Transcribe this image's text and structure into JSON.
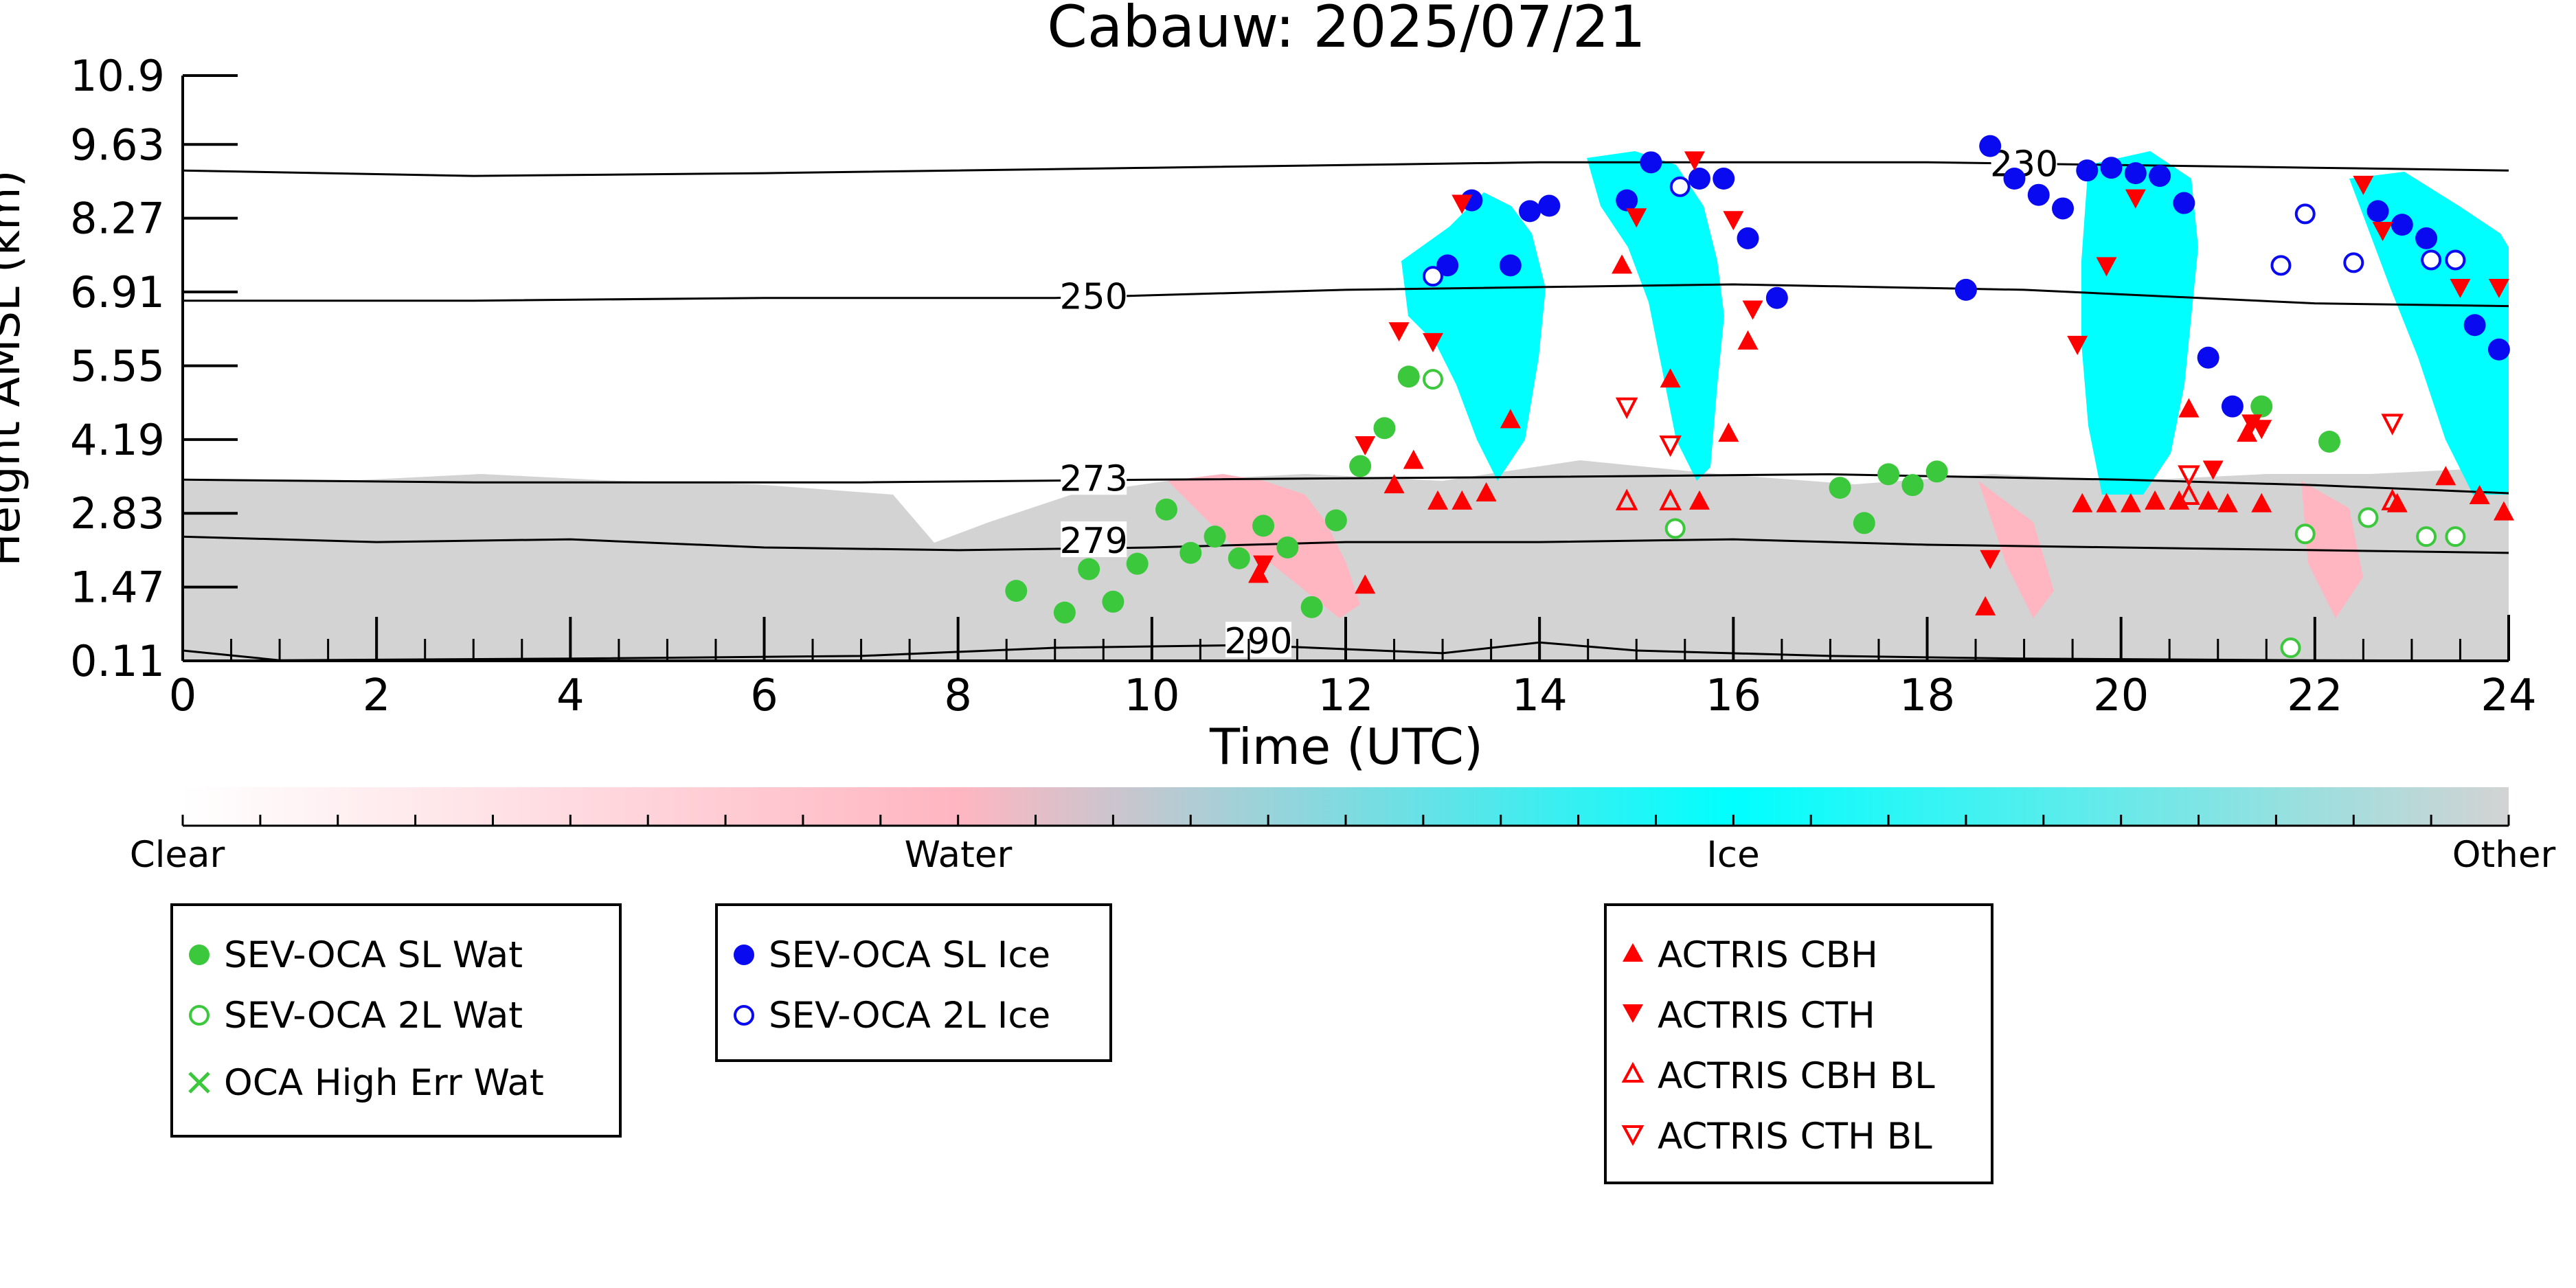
{
  "chart_data": {
    "type": "scatter",
    "title": "Cabauw: 2025/07/21",
    "xlabel": "Time (UTC)",
    "ylabel": "Height AMSL (km)",
    "xlim": [
      0,
      24
    ],
    "ylim": [
      0.11,
      10.9
    ],
    "x_ticks": [
      0,
      2,
      4,
      6,
      8,
      10,
      12,
      14,
      16,
      18,
      20,
      22,
      24
    ],
    "y_ticks": [
      "0.11",
      "1.47",
      "2.83",
      "4.19",
      "5.55",
      "6.91",
      "8.27",
      "9.63",
      "10.9"
    ],
    "colorbar": {
      "labels": [
        "Clear",
        "Water",
        "Ice",
        "Other"
      ],
      "colors": [
        "#ffffff",
        "#ffb6c1",
        "#00ffff",
        "#d3d3d3"
      ]
    },
    "contours": [
      {
        "label": "230",
        "label_at": [
          19.0,
          9.25
        ],
        "points": [
          [
            0,
            9.15
          ],
          [
            3,
            9.05
          ],
          [
            6,
            9.1
          ],
          [
            10,
            9.2
          ],
          [
            14,
            9.3
          ],
          [
            18,
            9.3
          ],
          [
            22,
            9.2
          ],
          [
            24,
            9.15
          ]
        ]
      },
      {
        "label": "250",
        "label_at": [
          9.4,
          6.8
        ],
        "points": [
          [
            0,
            6.75
          ],
          [
            3,
            6.75
          ],
          [
            6,
            6.8
          ],
          [
            9,
            6.8
          ],
          [
            12,
            6.95
          ],
          [
            16,
            7.05
          ],
          [
            19,
            6.95
          ],
          [
            22,
            6.7
          ],
          [
            24,
            6.65
          ]
        ]
      },
      {
        "label": "273",
        "label_at": [
          9.4,
          3.45
        ],
        "points": [
          [
            0,
            3.45
          ],
          [
            3,
            3.4
          ],
          [
            7,
            3.4
          ],
          [
            10,
            3.45
          ],
          [
            14,
            3.5
          ],
          [
            17,
            3.55
          ],
          [
            20,
            3.45
          ],
          [
            22,
            3.35
          ],
          [
            24,
            3.2
          ]
        ]
      },
      {
        "label": "279",
        "label_at": [
          9.4,
          2.3
        ],
        "points": [
          [
            0,
            2.4
          ],
          [
            2,
            2.3
          ],
          [
            4,
            2.35
          ],
          [
            6,
            2.2
          ],
          [
            8,
            2.15
          ],
          [
            10,
            2.2
          ],
          [
            12,
            2.3
          ],
          [
            14,
            2.3
          ],
          [
            16,
            2.35
          ],
          [
            18,
            2.25
          ],
          [
            20,
            2.2
          ],
          [
            22,
            2.15
          ],
          [
            24,
            2.1
          ]
        ]
      },
      {
        "label": "290",
        "label_at": [
          11.1,
          0.45
        ],
        "points": [
          [
            0,
            0.3
          ],
          [
            1,
            0.12
          ],
          [
            4,
            0.15
          ],
          [
            7,
            0.2
          ],
          [
            9,
            0.35
          ],
          [
            11,
            0.4
          ],
          [
            13,
            0.25
          ],
          [
            14,
            0.45
          ],
          [
            15,
            0.3
          ],
          [
            17,
            0.2
          ],
          [
            19,
            0.15
          ],
          [
            22,
            0.12
          ],
          [
            24,
            0.11
          ]
        ]
      }
    ],
    "series": [
      {
        "name": "SEV-OCA SL Wat",
        "color": "#3cc83c",
        "marker": "circle-filled",
        "points": [
          [
            8.6,
            1.4
          ],
          [
            9.1,
            1.0
          ],
          [
            9.35,
            1.8
          ],
          [
            9.6,
            1.2
          ],
          [
            9.85,
            1.9
          ],
          [
            10.15,
            2.9
          ],
          [
            10.4,
            2.1
          ],
          [
            10.65,
            2.4
          ],
          [
            10.9,
            2.0
          ],
          [
            11.15,
            2.6
          ],
          [
            11.4,
            2.2
          ],
          [
            11.65,
            1.1
          ],
          [
            11.9,
            2.7
          ],
          [
            12.15,
            3.7
          ],
          [
            12.4,
            4.4
          ],
          [
            12.65,
            5.35
          ],
          [
            17.1,
            3.3
          ],
          [
            17.35,
            2.65
          ],
          [
            17.6,
            3.55
          ],
          [
            17.85,
            3.35
          ],
          [
            18.1,
            3.6
          ],
          [
            21.45,
            4.8
          ],
          [
            22.15,
            4.15
          ]
        ]
      },
      {
        "name": "SEV-OCA 2L Wat",
        "color": "#3cc83c",
        "marker": "circle-open",
        "points": [
          [
            12.9,
            5.3
          ],
          [
            15.4,
            2.55
          ],
          [
            21.75,
            0.35
          ],
          [
            21.9,
            2.45
          ],
          [
            22.55,
            2.75
          ],
          [
            23.15,
            2.4
          ],
          [
            23.45,
            2.4
          ]
        ]
      },
      {
        "name": "OCA High Err Wat",
        "color": "#3cc83c",
        "marker": "x",
        "points": []
      },
      {
        "name": "SEV-OCA SL Ice",
        "color": "#0a0af0",
        "marker": "circle-filled",
        "points": [
          [
            13.05,
            7.4
          ],
          [
            13.3,
            8.6
          ],
          [
            13.7,
            7.4
          ],
          [
            13.9,
            8.4
          ],
          [
            14.1,
            8.5
          ],
          [
            14.9,
            8.6
          ],
          [
            15.15,
            9.3
          ],
          [
            15.65,
            9.0
          ],
          [
            15.9,
            9.0
          ],
          [
            16.15,
            7.9
          ],
          [
            16.45,
            6.8
          ],
          [
            18.4,
            6.95
          ],
          [
            18.65,
            9.6
          ],
          [
            18.9,
            9.0
          ],
          [
            19.15,
            8.7
          ],
          [
            19.4,
            8.45
          ],
          [
            19.65,
            9.15
          ],
          [
            19.9,
            9.2
          ],
          [
            20.15,
            9.1
          ],
          [
            20.4,
            9.05
          ],
          [
            20.65,
            8.55
          ],
          [
            20.9,
            5.7
          ],
          [
            21.15,
            4.8
          ],
          [
            22.65,
            8.4
          ],
          [
            22.9,
            8.15
          ],
          [
            23.15,
            7.9
          ],
          [
            23.65,
            6.3
          ],
          [
            23.9,
            5.85
          ]
        ]
      },
      {
        "name": "SEV-OCA 2L Ice",
        "color": "#0a0af0",
        "marker": "circle-open",
        "points": [
          [
            12.9,
            7.2
          ],
          [
            15.45,
            8.85
          ],
          [
            21.65,
            7.4
          ],
          [
            21.9,
            8.35
          ],
          [
            22.4,
            7.45
          ],
          [
            23.2,
            7.5
          ],
          [
            23.45,
            7.5
          ]
        ]
      },
      {
        "name": "ACTRIS CBH",
        "color": "#ff0000",
        "marker": "triangle-up-filled",
        "points": [
          [
            11.1,
            1.7
          ],
          [
            12.2,
            1.5
          ],
          [
            12.5,
            3.35
          ],
          [
            12.7,
            3.8
          ],
          [
            12.95,
            3.05
          ],
          [
            13.2,
            3.05
          ],
          [
            13.45,
            3.2
          ],
          [
            13.7,
            4.55
          ],
          [
            14.85,
            7.4
          ],
          [
            15.35,
            5.3
          ],
          [
            15.65,
            3.05
          ],
          [
            15.95,
            4.3
          ],
          [
            16.15,
            6.0
          ],
          [
            18.6,
            1.1
          ],
          [
            19.6,
            3.0
          ],
          [
            19.85,
            3.0
          ],
          [
            20.1,
            3.0
          ],
          [
            20.35,
            3.05
          ],
          [
            20.6,
            3.05
          ],
          [
            20.7,
            4.75
          ],
          [
            20.9,
            3.05
          ],
          [
            21.1,
            3.0
          ],
          [
            21.3,
            4.3
          ],
          [
            21.45,
            3.0
          ],
          [
            22.85,
            3.0
          ],
          [
            23.35,
            3.5
          ],
          [
            23.7,
            3.15
          ],
          [
            23.95,
            2.85
          ]
        ]
      },
      {
        "name": "ACTRIS CTH",
        "color": "#ff0000",
        "marker": "triangle-down-filled",
        "points": [
          [
            11.15,
            1.9
          ],
          [
            12.2,
            4.1
          ],
          [
            12.55,
            6.2
          ],
          [
            12.9,
            6.0
          ],
          [
            13.2,
            8.55
          ],
          [
            15.0,
            8.3
          ],
          [
            15.6,
            9.35
          ],
          [
            16.0,
            8.25
          ],
          [
            16.2,
            6.6
          ],
          [
            18.65,
            2.0
          ],
          [
            19.55,
            5.95
          ],
          [
            19.85,
            7.4
          ],
          [
            20.15,
            8.65
          ],
          [
            20.95,
            3.65
          ],
          [
            21.35,
            4.5
          ],
          [
            21.45,
            4.4
          ],
          [
            22.5,
            8.9
          ],
          [
            22.7,
            8.05
          ],
          [
            23.5,
            7.0
          ],
          [
            23.9,
            7.0
          ]
        ]
      },
      {
        "name": "ACTRIS CBH BL",
        "color": "#ff0000",
        "marker": "triangle-up-open",
        "points": [
          [
            14.9,
            3.05
          ],
          [
            15.35,
            3.05
          ],
          [
            20.7,
            3.15
          ],
          [
            22.8,
            3.05
          ]
        ]
      },
      {
        "name": "ACTRIS CTH BL",
        "color": "#ff0000",
        "marker": "triangle-down-open",
        "points": [
          [
            14.9,
            4.8
          ],
          [
            15.35,
            4.1
          ],
          [
            20.7,
            3.55
          ],
          [
            22.8,
            4.5
          ]
        ]
      }
    ]
  }
}
